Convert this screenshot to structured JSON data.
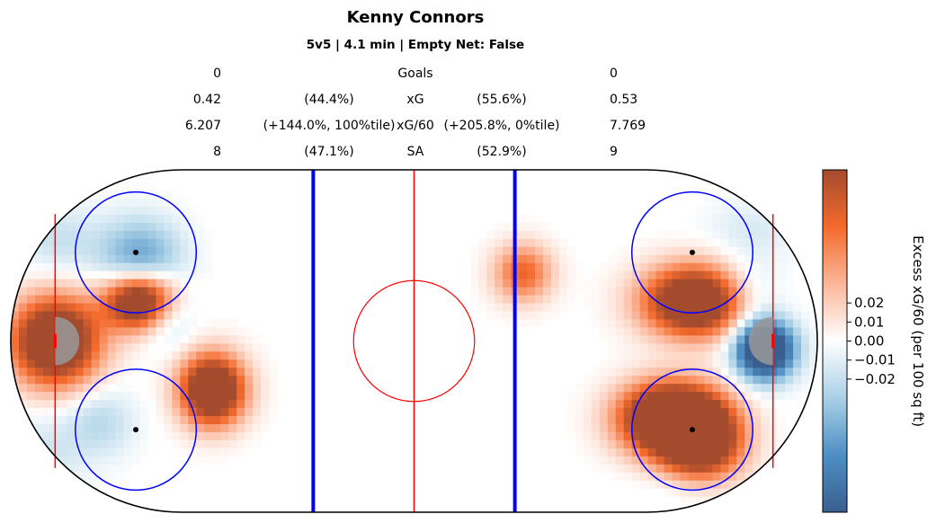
{
  "chart_data": {
    "type": "heatmap",
    "title": "Kenny Connors",
    "subtitle": "5v5 | 4.1 min | Empty Net: False",
    "stats_table": {
      "rows": [
        {
          "label": "Goals",
          "left_value": "0",
          "left_share": "",
          "right_share": "",
          "right_value": "0"
        },
        {
          "label": "xG",
          "left_value": "0.42",
          "left_share": "(44.4%)",
          "right_share": "(55.6%)",
          "right_value": "0.53"
        },
        {
          "label": "xG/60",
          "left_value": "6.207",
          "left_share": "(+144.0%, 100%tile)",
          "right_share": "(+205.8%, 0%tile)",
          "right_value": "7.769"
        },
        {
          "label": "SA",
          "left_value": "8",
          "left_share": "(47.1%)",
          "right_share": "(52.9%)",
          "right_value": "9"
        }
      ]
    },
    "colorbar": {
      "label": "Excess xG/60 (per 100 sq ft)",
      "ticks": [
        "0.02",
        "0.01",
        "0.00",
        "−0.01",
        "−0.02"
      ],
      "tick_values": [
        0.02,
        0.01,
        0.0,
        -0.01,
        -0.02
      ],
      "range": [
        -0.09,
        0.09
      ],
      "colormap": [
        "#3a5f8f",
        "#4d8fc4",
        "#a9d0e6",
        "#ffffff",
        "#fbb79a",
        "#f46a2c",
        "#a44b2e"
      ]
    },
    "rink": {
      "x_range": [
        -100,
        100
      ],
      "y_range": [
        -42.5,
        42.5
      ],
      "board_color": "#000000",
      "blue_line_color": "#0000ff",
      "red_line_color": "#ff0000",
      "crease_color": "#999999"
    },
    "heat_blobs": [
      {
        "x": -89,
        "y": 0,
        "sx": 7.5,
        "sy": 7.5,
        "value": 0.09
      },
      {
        "x": -68,
        "y": 10,
        "sx": 6,
        "sy": 5,
        "value": 0.09
      },
      {
        "x": -50,
        "y": -12,
        "sx": 5.5,
        "sy": 6,
        "value": 0.09
      },
      {
        "x": -68,
        "y": 20,
        "sx": 7,
        "sy": 7,
        "value": -0.035
      },
      {
        "x": -62,
        "y": 6,
        "sx": 5,
        "sy": 5,
        "value": -0.02
      },
      {
        "x": -88,
        "y": 25,
        "sx": 7,
        "sy": 6,
        "value": -0.012
      },
      {
        "x": -78,
        "y": -20,
        "sx": 6,
        "sy": 6,
        "value": -0.015
      },
      {
        "x": -92,
        "y": -28,
        "sx": 7,
        "sy": 7,
        "value": -0.01
      },
      {
        "x": 27,
        "y": 17,
        "sx": 5,
        "sy": 5,
        "value": 0.04
      },
      {
        "x": 70,
        "y": 10,
        "sx": 9,
        "sy": 6,
        "value": 0.09
      },
      {
        "x": 62,
        "y": -19,
        "sx": 8,
        "sy": 6,
        "value": 0.09
      },
      {
        "x": 71,
        "y": -24,
        "sx": 7,
        "sy": 7,
        "value": 0.09
      },
      {
        "x": 87,
        "y": -2,
        "sx": 5,
        "sy": 5,
        "value": -0.09
      },
      {
        "x": 82,
        "y": 12,
        "sx": 6,
        "sy": 6,
        "value": -0.02
      },
      {
        "x": 84,
        "y": 28,
        "sx": 8,
        "sy": 5,
        "value": -0.008
      },
      {
        "x": 68,
        "y": -36,
        "sx": 8,
        "sy": 4,
        "value": -0.008
      }
    ]
  }
}
